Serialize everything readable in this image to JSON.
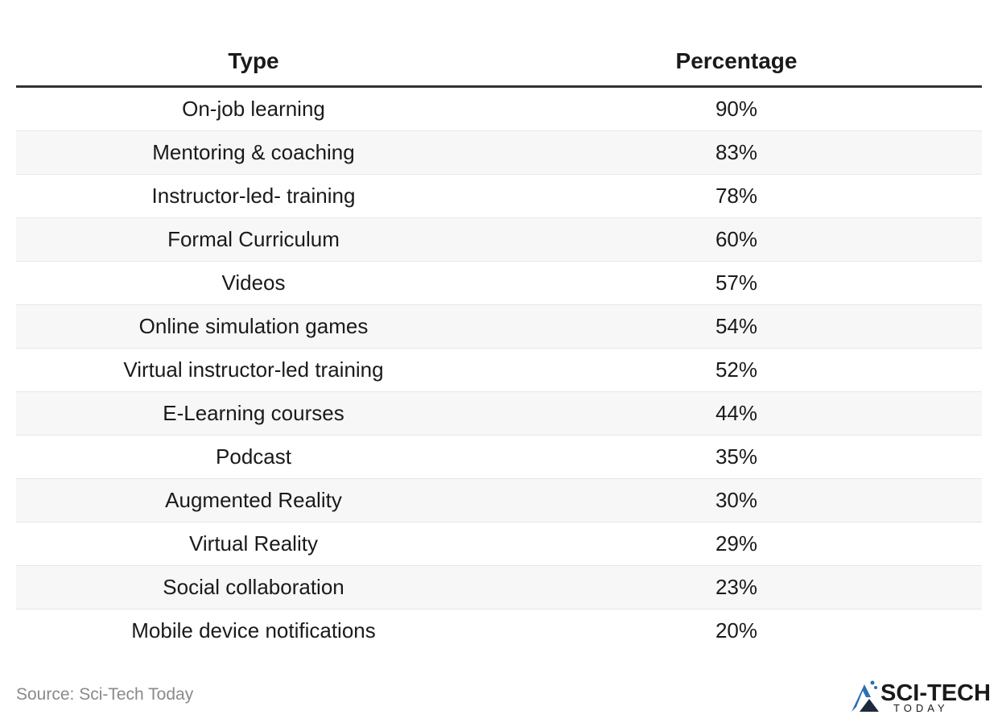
{
  "table": {
    "header": [
      "Type",
      "Percentage"
    ],
    "rows": [
      [
        "On-job learning",
        "90%"
      ],
      [
        "Mentoring & coaching",
        "83%"
      ],
      [
        "Instructor-led- training",
        "78%"
      ],
      [
        "Formal Curriculum",
        "60%"
      ],
      [
        "Videos",
        "57%"
      ],
      [
        "Online simulation games",
        "54%"
      ],
      [
        "Virtual instructor-led training",
        "52%"
      ],
      [
        "E-Learning courses",
        "44%"
      ],
      [
        "Podcast",
        "35%"
      ],
      [
        "Augmented Reality",
        "30%"
      ],
      [
        "Virtual Reality",
        "29%"
      ],
      [
        "Social collaboration",
        "23%"
      ],
      [
        "Mobile device notifications",
        "20%"
      ]
    ]
  },
  "footer": {
    "source": "Source: Sci-Tech Today",
    "logo_top": "SCI-TECH",
    "logo_bottom": "TODAY"
  }
}
